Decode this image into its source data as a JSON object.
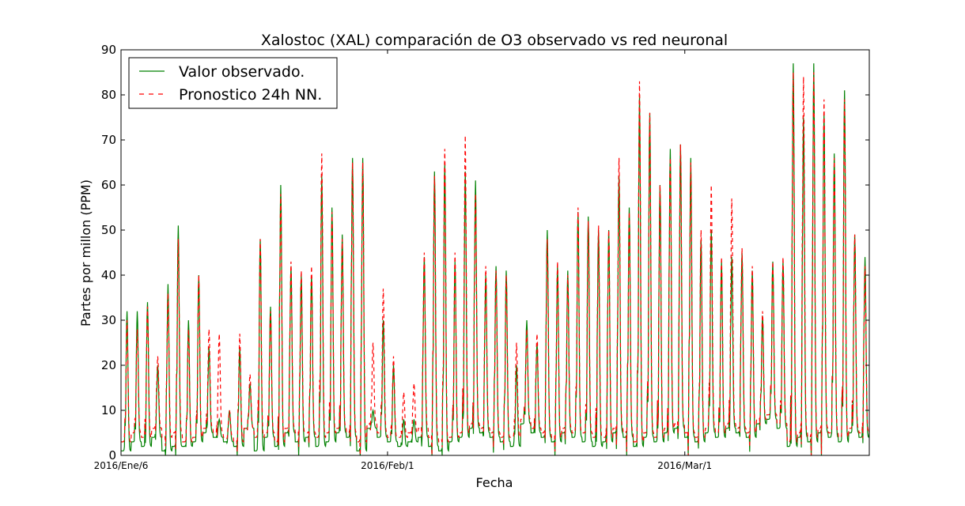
{
  "chart_data": {
    "type": "line",
    "title": "Xalostoc (XAL) comparación de O3 observado vs red neuronal",
    "xlabel": "Fecha",
    "ylabel": "Partes por millon (PPM)",
    "ylim": [
      0,
      90
    ],
    "yticks": [
      0,
      10,
      20,
      30,
      40,
      50,
      60,
      70,
      80,
      90
    ],
    "x_tick_labels": [
      "2016/Ene/6",
      "2016/Feb/1",
      "2016/Mar/1"
    ],
    "x_tick_dates": [
      "2016-01-06",
      "2016-02-01",
      "2016-03-01"
    ],
    "x_range": [
      "2016-01-06",
      "2016-03-19"
    ],
    "grid": false,
    "legend_position": "top-left",
    "series": [
      {
        "name": "Valor observado.",
        "color": "#008000",
        "style": "solid",
        "daily_peaks": [
          32,
          32,
          34,
          20,
          38,
          51,
          30,
          40,
          24,
          8,
          10,
          24,
          16,
          48,
          33,
          60,
          42,
          40,
          40,
          62,
          55,
          49,
          66,
          66,
          10,
          30,
          20,
          8,
          8,
          44,
          63,
          65,
          43,
          63,
          61,
          40,
          42,
          41,
          20,
          30,
          25,
          50,
          42,
          41,
          54,
          53,
          50,
          50,
          62,
          55,
          80,
          76,
          60,
          68,
          69,
          66,
          48,
          50,
          43,
          44,
          45,
          41,
          31,
          43,
          43,
          87,
          75,
          87,
          76,
          67,
          81,
          49,
          44,
          43,
          47,
          48
        ],
        "daily_troughs": [
          1,
          3,
          2,
          4,
          1,
          2,
          2,
          3,
          5,
          4,
          3,
          2,
          6,
          1,
          4,
          2,
          5,
          3,
          4,
          2,
          3,
          5,
          4,
          1,
          6,
          4,
          3,
          2,
          3,
          4,
          2,
          1,
          3,
          4,
          6,
          5,
          4,
          3,
          2,
          7,
          5,
          4,
          3,
          5,
          4,
          3,
          2,
          3,
          5,
          4,
          2,
          4,
          3,
          5,
          6,
          4,
          3,
          5,
          4,
          6,
          5,
          4,
          7,
          8,
          6,
          2,
          4,
          3,
          5,
          4,
          3,
          5,
          4,
          5,
          4,
          3
        ]
      },
      {
        "name": "Pronostico 24h NN.",
        "color": "#ff0000",
        "style": "dashed",
        "daily_peaks": [
          30,
          28,
          33,
          22,
          36,
          48,
          28,
          40,
          28,
          27,
          10,
          27,
          18,
          48,
          32,
          58,
          43,
          41,
          42,
          67,
          54,
          48,
          65,
          65,
          25,
          37,
          22,
          14,
          16,
          45,
          62,
          68,
          45,
          71,
          58,
          42,
          41,
          40,
          25,
          28,
          27,
          48,
          43,
          40,
          55,
          52,
          51,
          50,
          66,
          54,
          83,
          76,
          60,
          66,
          69,
          65,
          50,
          60,
          44,
          57,
          46,
          42,
          32,
          43,
          44,
          85,
          84,
          85,
          79,
          66,
          79,
          49,
          42,
          42,
          46,
          47
        ],
        "daily_troughs": [
          3,
          5,
          4,
          6,
          4,
          5,
          3,
          4,
          6,
          5,
          4,
          3,
          6,
          4,
          5,
          3,
          6,
          5,
          5,
          4,
          5,
          6,
          5,
          3,
          7,
          5,
          4,
          4,
          5,
          6,
          4,
          3,
          4,
          5,
          7,
          6,
          5,
          4,
          4,
          8,
          6,
          5,
          4,
          6,
          5,
          5,
          4,
          4,
          6,
          5,
          3,
          5,
          4,
          6,
          7,
          5,
          4,
          6,
          5,
          7,
          6,
          5,
          8,
          9,
          7,
          3,
          5,
          4,
          6,
          5,
          4,
          6,
          5,
          6,
          5,
          4
        ]
      }
    ]
  }
}
